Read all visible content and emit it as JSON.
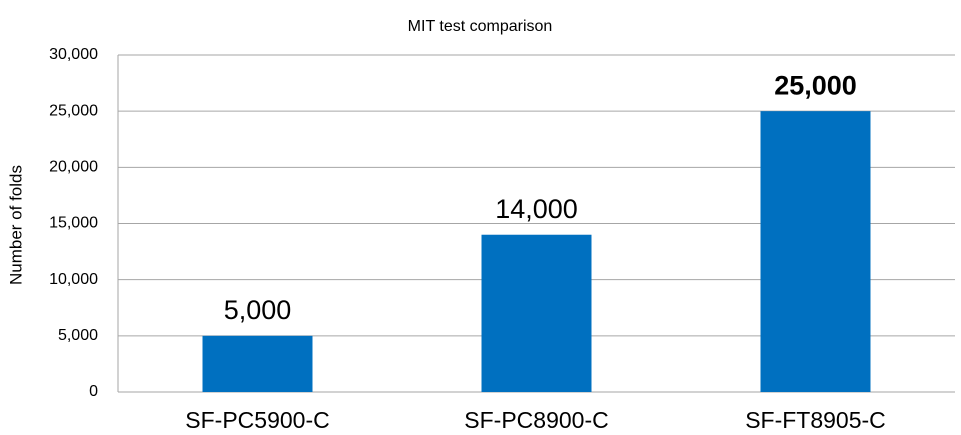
{
  "chart_data": {
    "type": "bar",
    "title": "MIT test comparison",
    "y_label": "Number of folds",
    "categories": [
      "SF-PC5900-C",
      "SF-PC8900-C",
      "SF-FT8905-C"
    ],
    "values": [
      5000,
      14000,
      25000
    ],
    "value_labels": [
      "5,000",
      "14,000",
      "25,000"
    ],
    "color": "#0070c0",
    "ylim": [
      0,
      30000
    ],
    "yticks": [
      0,
      {
        "value": 5000,
        "label": "5,000"
      },
      {
        "value": 10000,
        "label": "10,000"
      },
      {
        "value": 15000,
        "label": "15,000"
      },
      {
        "value": 20000,
        "label": "20,000"
      },
      {
        "value": 25000,
        "label": "25,000"
      },
      {
        "value": 30000,
        "label": "30,000"
      }
    ],
    "grid": true
  }
}
